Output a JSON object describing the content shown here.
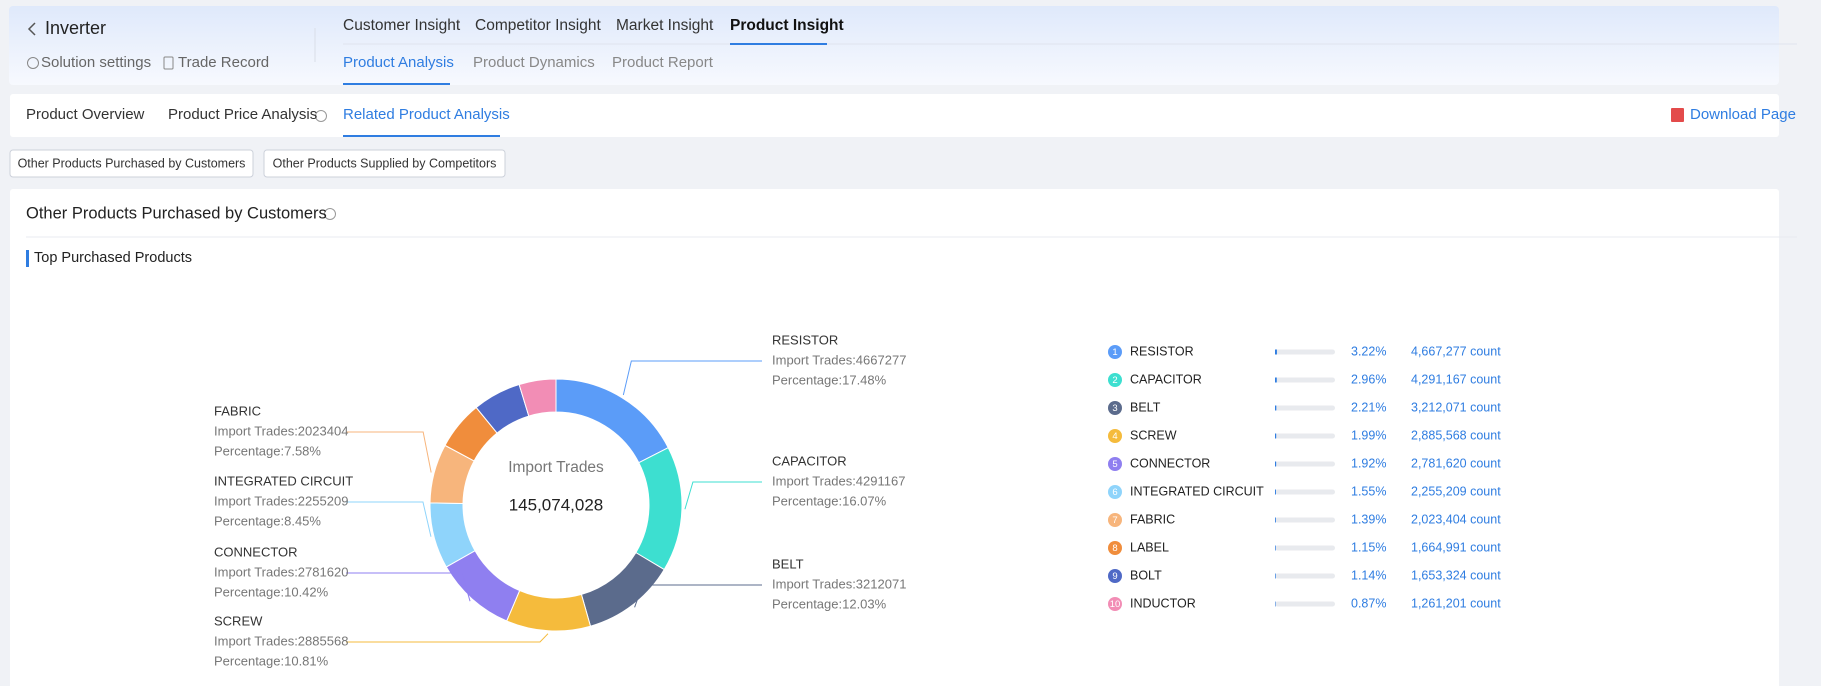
{
  "header": {
    "back_title": "Inverter",
    "links": [
      "Solution settings",
      "Trade Record"
    ],
    "nav": [
      "Customer Insight",
      "Competitor Insight",
      "Market Insight",
      "Product Insight"
    ],
    "subnav": [
      "Product Analysis",
      "Product Dynamics",
      "Product Report"
    ]
  },
  "tabs": {
    "items": [
      "Product Overview",
      "Product Price Analysis",
      "Related Product Analysis"
    ],
    "download": "Download Page"
  },
  "buttons": [
    "Other Products Purchased by Customers",
    "Other Products Supplied by Competitors"
  ],
  "section": {
    "title": "Other Products Purchased by Customers",
    "subtitle": "Top Purchased Products"
  },
  "chart_data": {
    "type": "pie",
    "center_label": "Import Trades",
    "center_value": "145,074,028",
    "categories": [
      "RESISTOR",
      "CAPACITOR",
      "BELT",
      "SCREW",
      "CONNECTOR",
      "INTEGRATED CIRCUIT",
      "FABRIC",
      "LABEL",
      "BOLT",
      "INDUCTOR"
    ],
    "values": [
      4667277,
      4291167,
      3212071,
      2885568,
      2781620,
      2255209,
      2023404,
      1664991,
      1653324,
      1261201
    ],
    "colors": [
      "#5b9cf8",
      "#3ddfd0",
      "#5b6b8c",
      "#f5bb3c",
      "#8f7ff0",
      "#8fd4fb",
      "#f7b57c",
      "#f08d3c",
      "#4f69c6",
      "#f28db5"
    ],
    "callout_names": [
      "RESISTOR",
      "CAPACITOR",
      "BELT",
      "SCREW",
      "CONNECTOR",
      "INTEGRATED CIRCUIT",
      "FABRIC",
      null,
      null,
      null
    ],
    "callout_trades": [
      "Import Trades:4667277",
      "Import Trades:4291167",
      "Import Trades:3212071",
      "Import Trades:2885568",
      "Import Trades:2781620",
      "Import Trades:2255209",
      "Import Trades:2023404",
      null,
      null,
      null
    ],
    "callout_percent": [
      "Percentage:17.48%",
      "Percentage:16.07%",
      "Percentage:12.03%",
      "Percentage:10.81%",
      "Percentage:10.42%",
      "Percentage:8.45%",
      "Percentage:7.58%",
      null,
      null,
      null
    ]
  },
  "ranking": [
    {
      "rank": 1,
      "name": "RESISTOR",
      "share": 3.22,
      "share_label": "3.22%",
      "count": "4,667,277 count"
    },
    {
      "rank": 2,
      "name": "CAPACITOR",
      "share": 2.96,
      "share_label": "2.96%",
      "count": "4,291,167 count"
    },
    {
      "rank": 3,
      "name": "BELT",
      "share": 2.21,
      "share_label": "2.21%",
      "count": "3,212,071 count"
    },
    {
      "rank": 4,
      "name": "SCREW",
      "share": 1.99,
      "share_label": "1.99%",
      "count": "2,885,568 count"
    },
    {
      "rank": 5,
      "name": "CONNECTOR",
      "share": 1.92,
      "share_label": "1.92%",
      "count": "2,781,620 count"
    },
    {
      "rank": 6,
      "name": "INTEGRATED CIRCUIT",
      "share": 1.55,
      "share_label": "1.55%",
      "count": "2,255,209 count"
    },
    {
      "rank": 7,
      "name": "FABRIC",
      "share": 1.39,
      "share_label": "1.39%",
      "count": "2,023,404 count"
    },
    {
      "rank": 8,
      "name": "LABEL",
      "share": 1.15,
      "share_label": "1.15%",
      "count": "1,664,991 count"
    },
    {
      "rank": 9,
      "name": "BOLT",
      "share": 1.14,
      "share_label": "1.14%",
      "count": "1,653,324 count"
    },
    {
      "rank": 10,
      "name": "INDUCTOR",
      "share": 0.87,
      "share_label": "0.87%",
      "count": "1,261,201 count"
    }
  ]
}
